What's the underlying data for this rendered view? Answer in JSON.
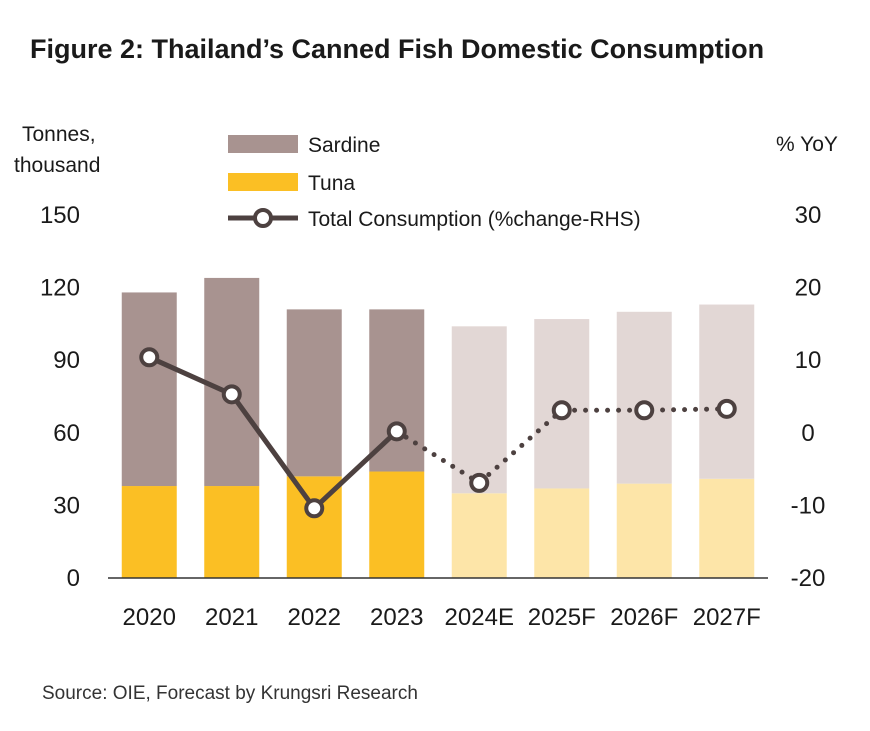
{
  "chart_data": {
    "type": "bar",
    "title": "Figure 2: Thailand’s Canned Fish Domestic Consumption",
    "ylabel": "Tonnes, thousand",
    "y2label": "% YoY",
    "categories": [
      "2020",
      "2021",
      "2022",
      "2023",
      "2024E",
      "2025F",
      "2026F",
      "2027F"
    ],
    "forecast_from_index": 4,
    "series": [
      {
        "name": "Sardine",
        "type": "bar",
        "stack": "total",
        "values": [
          80,
          86,
          69,
          67,
          69,
          70,
          71,
          72
        ],
        "color": "#a89390",
        "forecast_color": "#e2d7d5"
      },
      {
        "name": "Tuna",
        "type": "bar",
        "stack": "total",
        "values": [
          38,
          38,
          42,
          44,
          35,
          37,
          39,
          41
        ],
        "color": "#fbbf24",
        "forecast_color": "#fde5a8"
      },
      {
        "name": "Total Consumption (%change-RHS)",
        "type": "line",
        "axis": "right",
        "values": [
          10.4,
          5.3,
          -10.4,
          0.2,
          -6.9,
          3.1,
          3.1,
          3.3
        ],
        "color": "#4d4140"
      }
    ],
    "ylim": [
      0,
      150
    ],
    "yticks": [
      0,
      30,
      60,
      90,
      120,
      150
    ],
    "y2lim": [
      -20,
      30
    ],
    "y2ticks": [
      -20,
      -10,
      0,
      10,
      20,
      30
    ],
    "legend_position": "top",
    "grid": false
  },
  "source": "Source: OIE, Forecast by Krungsri Research"
}
